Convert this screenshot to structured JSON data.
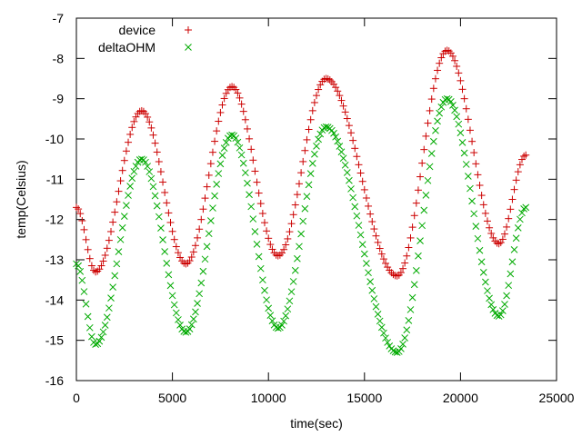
{
  "chart_data": {
    "type": "scatter",
    "title": "",
    "xlabel": "time(sec)",
    "ylabel": "temp(Celsius)",
    "xlim": [
      0,
      25000
    ],
    "ylim": [
      -16,
      -7
    ],
    "xticks": [
      0,
      5000,
      10000,
      15000,
      20000,
      25000
    ],
    "yticks": [
      -16,
      -15,
      -14,
      -13,
      -12,
      -11,
      -10,
      -9,
      -8,
      -7
    ],
    "grid": false,
    "legend_position": "top-left",
    "x_step": 100,
    "series": [
      {
        "name": "device",
        "marker": "plus",
        "color": "#cc0000",
        "anchors": [
          [
            0,
            -11.7
          ],
          [
            1000,
            -13.3
          ],
          [
            3400,
            -9.3
          ],
          [
            5700,
            -13.1
          ],
          [
            8100,
            -8.7
          ],
          [
            10500,
            -12.9
          ],
          [
            13000,
            -8.5
          ],
          [
            16700,
            -13.4
          ],
          [
            19300,
            -7.8
          ],
          [
            22000,
            -12.6
          ],
          [
            23400,
            -10.4
          ]
        ]
      },
      {
        "name": "deltaOHM",
        "marker": "cross",
        "color": "#00aa00",
        "anchors": [
          [
            0,
            -13.1
          ],
          [
            1000,
            -15.1
          ],
          [
            3400,
            -10.5
          ],
          [
            5700,
            -14.8
          ],
          [
            8100,
            -9.9
          ],
          [
            10500,
            -14.7
          ],
          [
            13000,
            -9.7
          ],
          [
            16700,
            -15.3
          ],
          [
            19300,
            -9.0
          ],
          [
            22000,
            -14.4
          ],
          [
            23400,
            -11.7
          ]
        ]
      }
    ]
  }
}
